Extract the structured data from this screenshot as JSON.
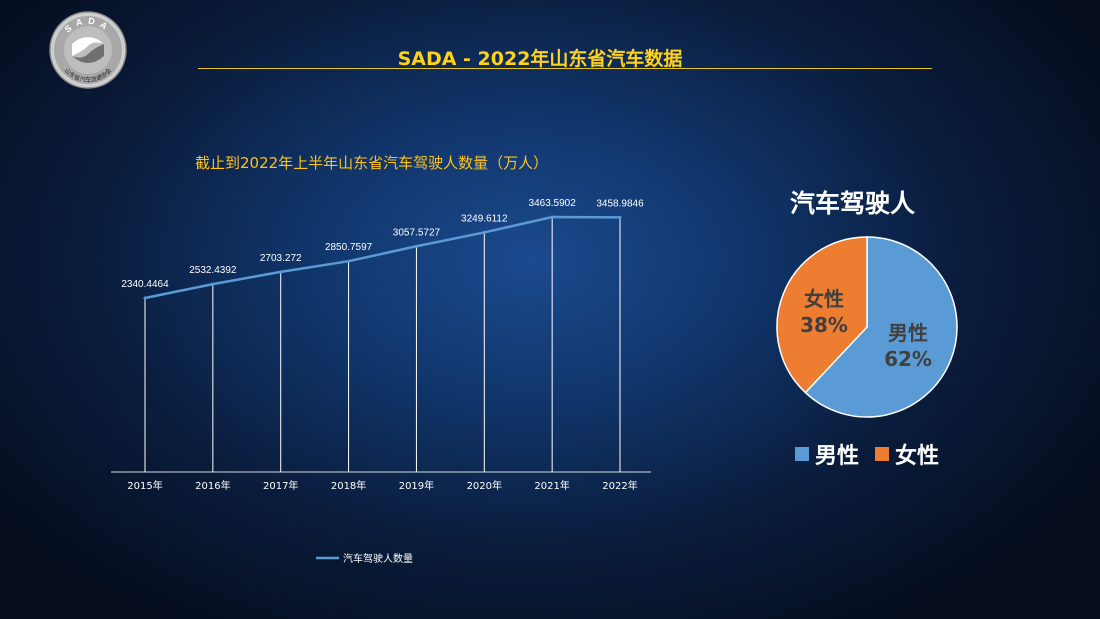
{
  "header": {
    "logo_text": "SADA",
    "logo_subtext": "山东省汽车流通协会",
    "title": "SADA -  2022年山东省汽车数据"
  },
  "chart_data": [
    {
      "type": "line",
      "title": "截止到2022年上半年山东省汽车驾驶人数量（万人）",
      "categories": [
        "2015年",
        "2016年",
        "2017年",
        "2018年",
        "2019年",
        "2020年",
        "2021年",
        "2022年"
      ],
      "series": [
        {
          "name": "汽车驾驶人数量",
          "values": [
            2340.4464,
            2532.4392,
            2703.272,
            2850.7597,
            3057.5727,
            3249.6112,
            3463.5902,
            3458.9846
          ],
          "labels": [
            "2340.4464",
            "2532.4392",
            "2703.272",
            "2850.7597",
            "3057.5727",
            "3249.6112",
            "3463.5902",
            "3458.9846"
          ],
          "color": "#5b9bd5"
        }
      ],
      "drop_lines": true,
      "legend_position": "bottom"
    },
    {
      "type": "pie",
      "title": "汽车驾驶人",
      "slices": [
        {
          "name": "男性",
          "value": 62,
          "label": "62%",
          "color": "#5b9bd5"
        },
        {
          "name": "女性",
          "value": 38,
          "label": "38%",
          "color": "#ed7d31"
        }
      ],
      "legend_position": "bottom"
    }
  ],
  "colors": {
    "title": "#ffd21a",
    "line": "#5b9bd5",
    "male": "#5b9bd5",
    "female": "#ed7d31",
    "slice_text": "#404040"
  }
}
